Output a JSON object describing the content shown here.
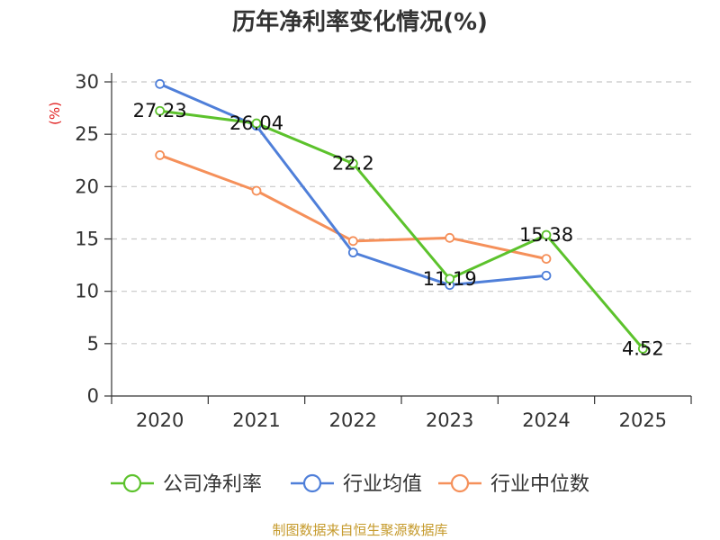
{
  "chart_data": {
    "type": "line",
    "title": "历年净利率变化情况(%)",
    "ylabel": "(%)",
    "categories": [
      "2020",
      "2021",
      "2022",
      "2023",
      "2024",
      "2025"
    ],
    "yticks": [
      "0",
      "5",
      "10",
      "15",
      "20",
      "25",
      "30"
    ],
    "ylim": [
      0,
      30
    ],
    "grid": true,
    "legend_position": "bottom",
    "series": [
      {
        "name": "公司净利率",
        "color": "#5cc22c",
        "values": [
          27.23,
          26.04,
          22.2,
          11.19,
          15.38,
          4.52
        ],
        "labels": [
          "27.23",
          "26.04",
          "22.2",
          "11.19",
          "15.38",
          "4.52"
        ]
      },
      {
        "name": "行业均值",
        "color": "#4f7fd9",
        "values": [
          29.8,
          25.8,
          13.7,
          10.6,
          11.5,
          null
        ]
      },
      {
        "name": "行业中位数",
        "color": "#f5905a",
        "values": [
          23.0,
          19.6,
          14.8,
          15.1,
          13.1,
          null
        ]
      }
    ],
    "source": "制图数据来自恒生聚源数据库"
  }
}
